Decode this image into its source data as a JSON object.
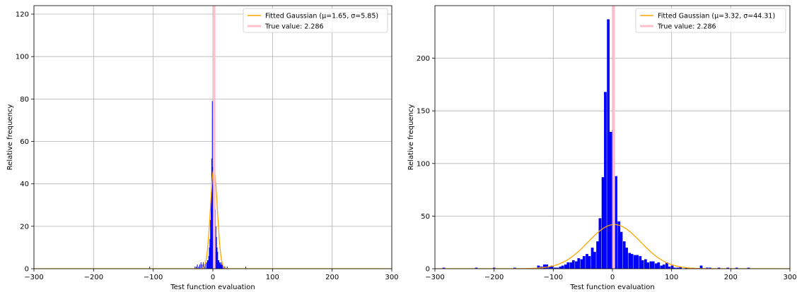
{
  "chart_data": [
    {
      "type": "bar",
      "xlabel": "Test function evaluation",
      "ylabel": "Relative frequency",
      "xlim": [
        -300,
        300
      ],
      "ylim": [
        0,
        124
      ],
      "xticks": [
        -300,
        -200,
        -100,
        0,
        100,
        200,
        300
      ],
      "xtick_labels": [
        "−300",
        "−200",
        "−100",
        "0",
        "100",
        "200",
        "300"
      ],
      "yticks": [
        0,
        20,
        40,
        60,
        80,
        100,
        120
      ],
      "ytick_labels": [
        "0",
        "20",
        "40",
        "60",
        "80",
        "100",
        "120"
      ],
      "grid": true,
      "legend_position": "top-right",
      "legend": [
        "Fitted Gaussian (μ=1.65, σ=5.85)",
        "True value: 2.286"
      ],
      "histogram": {
        "color": "#0000ff",
        "bin_width": 1,
        "x": [
          -106,
          -30,
          -28,
          -26,
          -24,
          -22,
          -20,
          -18,
          -16,
          -14,
          -12,
          -10,
          -9,
          -8,
          -7,
          -6,
          -5,
          -4,
          -3,
          -2,
          -1,
          0,
          1,
          2,
          3,
          4,
          5,
          6,
          7,
          8,
          9,
          10,
          11,
          12,
          13,
          14,
          15,
          16,
          18,
          20,
          24,
          55
        ],
        "values": [
          1,
          1,
          1,
          2,
          1,
          2,
          3,
          2,
          3,
          2,
          3,
          3,
          4,
          4,
          6,
          10,
          14,
          23,
          36,
          52,
          79,
          48,
          72,
          60,
          35,
          28,
          20,
          15,
          10,
          8,
          4,
          4,
          3,
          3,
          2,
          3,
          2,
          2,
          1,
          1,
          1,
          1
        ]
      },
      "gaussian": {
        "name": "Fitted Gaussian (μ=1.65, σ=5.85)",
        "mu": 1.65,
        "sigma": 5.85,
        "peak": 47,
        "color": "#ffa500"
      },
      "true_value": {
        "name": "True value: 2.286",
        "x": 2.286,
        "color": "#ffc0cb"
      }
    },
    {
      "type": "bar",
      "xlabel": "Test function evaluation",
      "ylabel": "Relative frequency",
      "xlim": [
        -300,
        300
      ],
      "ylim": [
        0,
        250
      ],
      "xticks": [
        -300,
        -200,
        -100,
        0,
        100,
        200,
        300
      ],
      "xtick_labels": [
        "−300",
        "−200",
        "−100",
        "0",
        "100",
        "200",
        "300"
      ],
      "yticks": [
        0,
        50,
        100,
        150,
        200
      ],
      "ytick_labels": [
        "0",
        "50",
        "100",
        "150",
        "200"
      ],
      "grid": true,
      "legend_position": "top-right",
      "legend": [
        "Fitted Gaussian (μ=3.32, σ=44.31)",
        "True value: 2.286"
      ],
      "histogram": {
        "color": "#0000ff",
        "bin_width": 4.5,
        "x": [
          -285,
          -230,
          -200,
          -165,
          -125,
          -120,
          -115,
          -111,
          -106,
          -102,
          -97,
          -93,
          -88,
          -84,
          -79,
          -75,
          -70,
          -66,
          -61,
          -57,
          -52,
          -48,
          -43,
          -39,
          -34,
          -30,
          -25,
          -21,
          -16,
          -12,
          -7,
          -3,
          2,
          6,
          11,
          15,
          20,
          24,
          29,
          33,
          38,
          42,
          47,
          51,
          56,
          60,
          65,
          69,
          74,
          78,
          83,
          87,
          92,
          96,
          101,
          105,
          110,
          115,
          125,
          135,
          150,
          160,
          165,
          180,
          195,
          210,
          230
        ],
        "values": [
          1,
          1,
          1,
          1,
          3,
          2,
          4,
          4,
          2,
          3,
          1,
          1,
          2,
          3,
          4,
          6,
          6,
          8,
          7,
          10,
          9,
          12,
          14,
          12,
          20,
          16,
          26,
          48,
          87,
          168,
          237,
          130,
          132,
          88,
          45,
          35,
          26,
          20,
          15,
          14,
          13,
          13,
          12,
          8,
          9,
          6,
          7,
          7,
          5,
          6,
          3,
          4,
          6,
          2,
          3,
          1,
          1,
          2,
          1,
          1,
          3,
          1,
          1,
          1,
          1,
          1,
          1
        ]
      },
      "gaussian": {
        "name": "Fitted Gaussian (μ=3.32, σ=44.31)",
        "mu": 3.32,
        "sigma": 44.31,
        "peak": 42,
        "color": "#ffa500"
      },
      "true_value": {
        "name": "True value: 2.286",
        "x": 2.286,
        "color": "#ffc0cb"
      }
    }
  ]
}
